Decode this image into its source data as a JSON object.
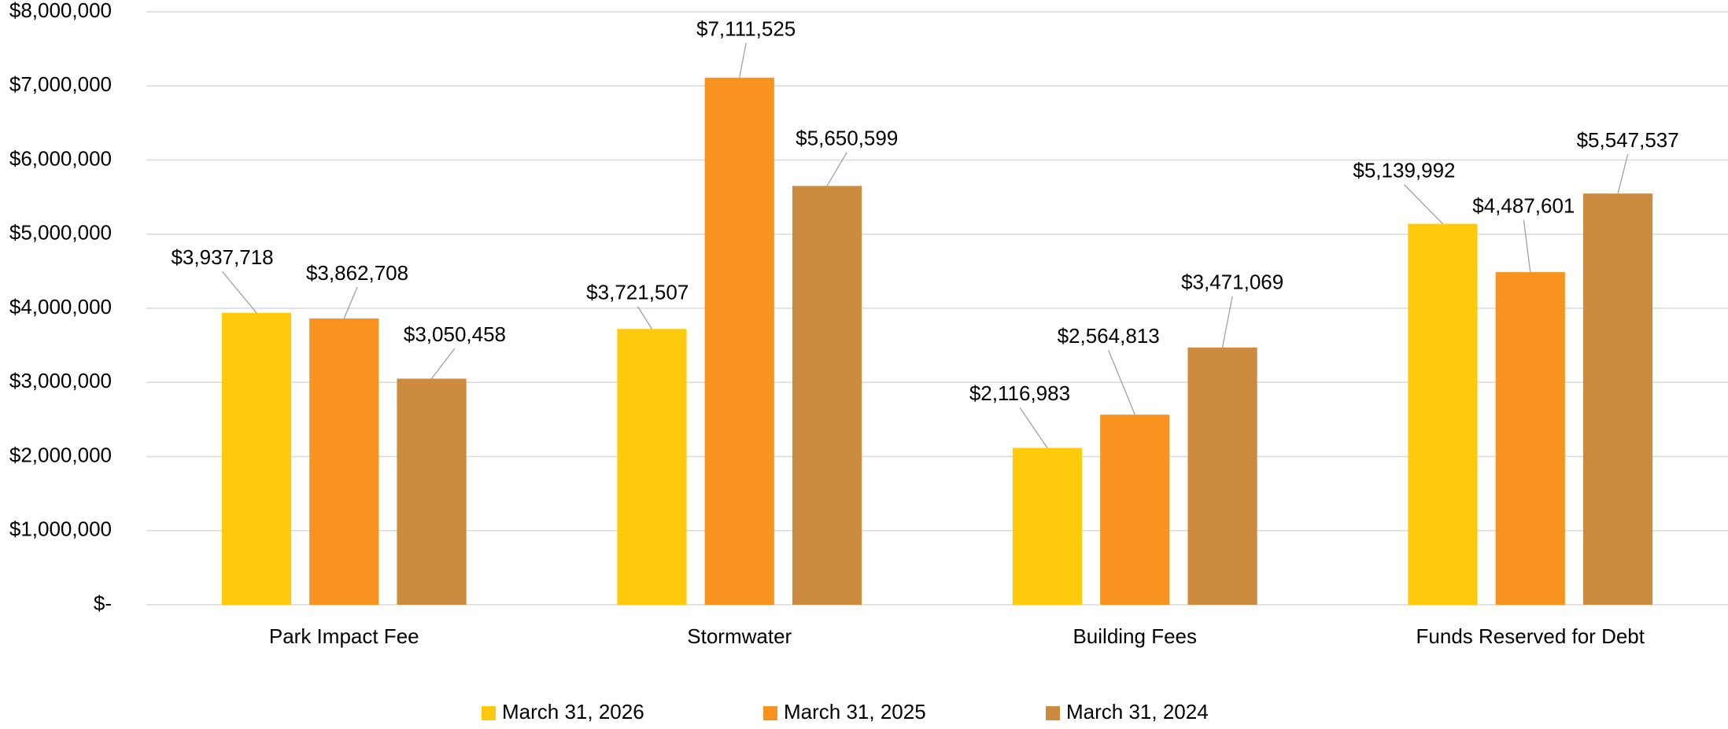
{
  "chart_data": {
    "type": "bar",
    "categories": [
      "Park Impact Fee",
      "Stormwater",
      "Building Fees",
      "Funds Reserved for Debt"
    ],
    "series": [
      {
        "name": "March 31, 2026",
        "color": "#ffc90c",
        "values": [
          3937718,
          3721507,
          2116983,
          5139992
        ],
        "value_labels": [
          "$3,937,718",
          "$3,721,507",
          "$2,116,983",
          "$5,139,992"
        ]
      },
      {
        "name": "March 31, 2025",
        "color": "#f7931e",
        "values": [
          3862708,
          7111525,
          2564813,
          4487601
        ],
        "value_labels": [
          "$3,862,708",
          "$7,111,525",
          "$2,564,813",
          "$4,487,601"
        ]
      },
      {
        "name": "March 31, 2024",
        "color": "#cd8b3f",
        "values": [
          3050458,
          5650599,
          3471069,
          5547537
        ],
        "value_labels": [
          "$3,050,458",
          "$5,650,599",
          "$3,471,069",
          "$5,547,537"
        ]
      }
    ],
    "ylim": [
      0,
      8000000
    ],
    "yticks": [
      {
        "value": 0,
        "label": "$-"
      },
      {
        "value": 1000000,
        "label": "$1,000,000"
      },
      {
        "value": 2000000,
        "label": "$2,000,000"
      },
      {
        "value": 3000000,
        "label": "$3,000,000"
      },
      {
        "value": 4000000,
        "label": "$4,000,000"
      },
      {
        "value": 5000000,
        "label": "$5,000,000"
      },
      {
        "value": 6000000,
        "label": "$6,000,000"
      },
      {
        "value": 7000000,
        "label": "$7,000,000"
      },
      {
        "value": 8000000,
        "label": "$8,000,000"
      }
    ],
    "grid": true,
    "legend": "bottom"
  }
}
